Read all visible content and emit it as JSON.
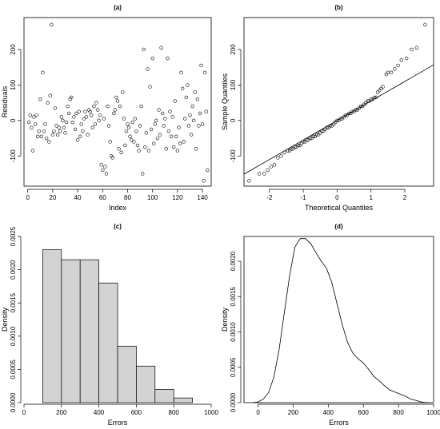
{
  "chart_data": [
    {
      "type": "scatter",
      "title": "(a)",
      "xlabel": "Index",
      "ylabel": "Residuals",
      "xlim": [
        -3,
        147
      ],
      "ylim": [
        -185,
        290
      ],
      "xticks": [
        0,
        20,
        40,
        60,
        80,
        100,
        120,
        140
      ],
      "yticks": [
        -100,
        0,
        100,
        200
      ],
      "points": [
        [
          1,
          -5
        ],
        [
          2,
          15
        ],
        [
          3,
          -20
        ],
        [
          4,
          -85
        ],
        [
          5,
          10
        ],
        [
          6,
          -10
        ],
        [
          7,
          15
        ],
        [
          8,
          -45
        ],
        [
          9,
          -30
        ],
        [
          10,
          60
        ],
        [
          11,
          -45
        ],
        [
          12,
          135
        ],
        [
          13,
          -30
        ],
        [
          14,
          -10
        ],
        [
          15,
          -50
        ],
        [
          16,
          50
        ],
        [
          17,
          -60
        ],
        [
          18,
          70
        ],
        [
          19,
          270
        ],
        [
          20,
          -40
        ],
        [
          21,
          -30
        ],
        [
          22,
          35
        ],
        [
          23,
          -15
        ],
        [
          24,
          -40
        ],
        [
          25,
          -20
        ],
        [
          26,
          -30
        ],
        [
          27,
          10
        ],
        [
          28,
          0
        ],
        [
          29,
          -20
        ],
        [
          30,
          -35
        ],
        [
          31,
          -5
        ],
        [
          32,
          40
        ],
        [
          33,
          20
        ],
        [
          34,
          60
        ],
        [
          35,
          65
        ],
        [
          36,
          -5
        ],
        [
          37,
          10
        ],
        [
          38,
          -25
        ],
        [
          39,
          20
        ],
        [
          40,
          -55
        ],
        [
          41,
          25
        ],
        [
          42,
          -45
        ],
        [
          43,
          -10
        ],
        [
          44,
          -30
        ],
        [
          45,
          5
        ],
        [
          46,
          25
        ],
        [
          47,
          10
        ],
        [
          48,
          -40
        ],
        [
          49,
          30
        ],
        [
          50,
          25
        ],
        [
          51,
          15
        ],
        [
          52,
          -20
        ],
        [
          53,
          40
        ],
        [
          54,
          -10
        ],
        [
          55,
          50
        ],
        [
          56,
          30
        ],
        [
          57,
          0
        ],
        [
          58,
          15
        ],
        [
          59,
          -125
        ],
        [
          60,
          -140
        ],
        [
          61,
          5
        ],
        [
          62,
          -130
        ],
        [
          63,
          -150
        ],
        [
          64,
          40
        ],
        [
          65,
          -15
        ],
        [
          66,
          -60
        ],
        [
          67,
          -100
        ],
        [
          68,
          -105
        ],
        [
          69,
          20
        ],
        [
          70,
          30
        ],
        [
          71,
          65
        ],
        [
          72,
          55
        ],
        [
          73,
          -80
        ],
        [
          74,
          40
        ],
        [
          75,
          -90
        ],
        [
          76,
          80
        ],
        [
          77,
          5
        ],
        [
          78,
          -70
        ],
        [
          79,
          -30
        ],
        [
          80,
          -10
        ],
        [
          81,
          -20
        ],
        [
          82,
          -45
        ],
        [
          83,
          -55
        ],
        [
          84,
          -5
        ],
        [
          85,
          -60
        ],
        [
          86,
          5
        ],
        [
          87,
          -30
        ],
        [
          88,
          -70
        ],
        [
          89,
          -85
        ],
        [
          90,
          -15
        ],
        [
          91,
          40
        ],
        [
          92,
          -150
        ],
        [
          93,
          200
        ],
        [
          94,
          -75
        ],
        [
          95,
          -35
        ],
        [
          96,
          145
        ],
        [
          97,
          -85
        ],
        [
          98,
          95
        ],
        [
          99,
          -25
        ],
        [
          100,
          175
        ],
        [
          101,
          -65
        ],
        [
          102,
          -10
        ],
        [
          103,
          0
        ],
        [
          104,
          -50
        ],
        [
          105,
          30
        ],
        [
          106,
          -40
        ],
        [
          107,
          205
        ],
        [
          108,
          20
        ],
        [
          109,
          -15
        ],
        [
          110,
          5
        ],
        [
          111,
          -80
        ],
        [
          112,
          175
        ],
        [
          113,
          -30
        ],
        [
          114,
          25
        ],
        [
          115,
          -45
        ],
        [
          116,
          10
        ],
        [
          117,
          -75
        ],
        [
          118,
          55
        ],
        [
          119,
          -45
        ],
        [
          120,
          -85
        ],
        [
          121,
          -20
        ],
        [
          122,
          -65
        ],
        [
          123,
          135
        ],
        [
          124,
          90
        ],
        [
          125,
          -60
        ],
        [
          126,
          5
        ],
        [
          127,
          65
        ],
        [
          128,
          100
        ],
        [
          129,
          -15
        ],
        [
          130,
          15
        ],
        [
          131,
          -40
        ],
        [
          132,
          40
        ],
        [
          133,
          0
        ],
        [
          134,
          80
        ],
        [
          135,
          -80
        ],
        [
          136,
          60
        ],
        [
          137,
          -15
        ],
        [
          138,
          20
        ],
        [
          139,
          155
        ],
        [
          140,
          -10
        ],
        [
          141,
          -170
        ],
        [
          142,
          135
        ],
        [
          143,
          25
        ],
        [
          144,
          -140
        ]
      ]
    },
    {
      "type": "scatter",
      "title": "(b)",
      "xlabel": "Theoretical Quantiles",
      "ylabel": "Sample Quantiles",
      "xlim": [
        -2.75,
        2.85
      ],
      "ylim": [
        -185,
        290
      ],
      "xticks": [
        -2,
        -1,
        0,
        1,
        2
      ],
      "yticks": [
        -100,
        0,
        100,
        200
      ],
      "reference_line": {
        "intercept": 0,
        "slope": 55
      },
      "points": [
        [
          -2.6,
          -170
        ],
        [
          -2.3,
          -150
        ],
        [
          -2.15,
          -150
        ],
        [
          -2.05,
          -140
        ],
        [
          -1.95,
          -130
        ],
        [
          -1.85,
          -125
        ],
        [
          -1.75,
          -105
        ],
        [
          -1.65,
          -100
        ],
        [
          -1.55,
          -90
        ],
        [
          -1.45,
          -85
        ],
        [
          -1.4,
          -85
        ],
        [
          -1.35,
          -80
        ],
        [
          -1.3,
          -80
        ],
        [
          -1.25,
          -75
        ],
        [
          -1.2,
          -75
        ],
        [
          -1.15,
          -70
        ],
        [
          -1.1,
          -70
        ],
        [
          -1.05,
          -65
        ],
        [
          -1.0,
          -60
        ],
        [
          -0.95,
          -60
        ],
        [
          -0.9,
          -55
        ],
        [
          -0.85,
          -55
        ],
        [
          -0.8,
          -50
        ],
        [
          -0.75,
          -50
        ],
        [
          -0.7,
          -45
        ],
        [
          -0.65,
          -45
        ],
        [
          -0.6,
          -40
        ],
        [
          -0.55,
          -40
        ],
        [
          -0.5,
          -35
        ],
        [
          -0.45,
          -30
        ],
        [
          -0.4,
          -30
        ],
        [
          -0.35,
          -25
        ],
        [
          -0.3,
          -20
        ],
        [
          -0.25,
          -20
        ],
        [
          -0.2,
          -15
        ],
        [
          -0.15,
          -15
        ],
        [
          -0.1,
          -10
        ],
        [
          -0.05,
          -5
        ],
        [
          0.0,
          0
        ],
        [
          0.05,
          0
        ],
        [
          0.1,
          5
        ],
        [
          0.15,
          5
        ],
        [
          0.2,
          10
        ],
        [
          0.25,
          15
        ],
        [
          0.3,
          15
        ],
        [
          0.35,
          20
        ],
        [
          0.4,
          20
        ],
        [
          0.45,
          25
        ],
        [
          0.5,
          25
        ],
        [
          0.55,
          30
        ],
        [
          0.6,
          30
        ],
        [
          0.65,
          35
        ],
        [
          0.7,
          40
        ],
        [
          0.75,
          40
        ],
        [
          0.8,
          45
        ],
        [
          0.85,
          50
        ],
        [
          0.9,
          55
        ],
        [
          0.95,
          55
        ],
        [
          1.0,
          60
        ],
        [
          1.05,
          60
        ],
        [
          1.1,
          65
        ],
        [
          1.15,
          65
        ],
        [
          1.2,
          80
        ],
        [
          1.25,
          85
        ],
        [
          1.3,
          90
        ],
        [
          1.35,
          95
        ],
        [
          1.45,
          130
        ],
        [
          1.5,
          135
        ],
        [
          1.6,
          135
        ],
        [
          1.7,
          145
        ],
        [
          1.8,
          155
        ],
        [
          1.9,
          170
        ],
        [
          2.05,
          175
        ],
        [
          2.2,
          200
        ],
        [
          2.35,
          205
        ],
        [
          2.6,
          270
        ]
      ]
    },
    {
      "type": "bar",
      "title": "(c)",
      "xlabel": "Errors",
      "ylabel": "Density",
      "xlim": [
        0,
        1000
      ],
      "ylim": [
        0,
        0.0025
      ],
      "xticks": [
        0,
        200,
        400,
        600,
        800,
        1000
      ],
      "yticks": [
        "0.0000",
        "0.0005",
        "0.0010",
        "0.0015",
        "0.0020",
        "0.0025"
      ],
      "bins": [
        [
          100,
          200,
          0.0023
        ],
        [
          200,
          300,
          0.00215
        ],
        [
          300,
          400,
          0.00215
        ],
        [
          400,
          500,
          0.0018
        ],
        [
          500,
          600,
          0.00085
        ],
        [
          600,
          700,
          0.00055
        ],
        [
          700,
          800,
          0.0002
        ],
        [
          800,
          900,
          7e-05
        ]
      ]
    },
    {
      "type": "line",
      "title": "(d)",
      "xlabel": "Errors",
      "ylabel": "Density",
      "xlim": [
        -80,
        1000
      ],
      "ylim": [
        0,
        0.00235
      ],
      "xticks": [
        0,
        200,
        400,
        600,
        800,
        1000
      ],
      "yticks": [
        "0.0000",
        "0.0005",
        "0.0010",
        "0.0015",
        "0.0020"
      ],
      "x": [
        -30,
        0,
        30,
        60,
        90,
        120,
        150,
        180,
        210,
        240,
        270,
        300,
        330,
        360,
        390,
        420,
        450,
        480,
        510,
        540,
        570,
        600,
        630,
        660,
        690,
        720,
        750,
        780,
        810,
        840,
        870,
        900,
        930,
        960,
        975
      ],
      "y": [
        0.0,
        1e-05,
        5e-05,
        0.00014,
        0.00036,
        0.00075,
        0.00128,
        0.0018,
        0.0022,
        0.00232,
        0.00232,
        0.00225,
        0.00212,
        0.002,
        0.0019,
        0.0017,
        0.0014,
        0.0011,
        0.00085,
        0.0007,
        0.00062,
        0.00056,
        0.00047,
        0.00037,
        0.00031,
        0.00024,
        0.00018,
        0.00015,
        0.00012,
        9e-05,
        5e-05,
        3e-05,
        1e-05,
        0.0,
        0.0
      ]
    }
  ]
}
